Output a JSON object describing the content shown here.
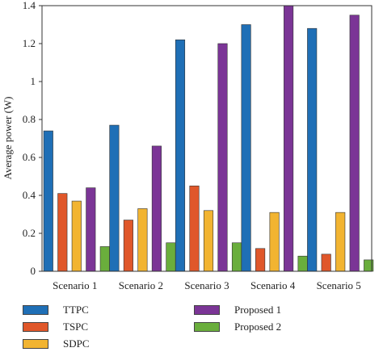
{
  "chart_data": {
    "type": "bar",
    "title": "",
    "xlabel": "",
    "ylabel": "Average power (W)",
    "ylim": [
      0,
      1.4
    ],
    "yticks": [
      0,
      0.2,
      0.4,
      0.6,
      0.8,
      1,
      1.2,
      1.4
    ],
    "ytick_labels": [
      "0",
      "0.2",
      "0.4",
      "0.6",
      "0.8",
      "1",
      "1.2",
      "1.4"
    ],
    "categories": [
      "Scenario 1",
      "Scenario 2",
      "Scenario 3",
      "Scenario 4",
      "Scenario 5"
    ],
    "series": [
      {
        "name": "TTPC",
        "color": "#1f6fb6",
        "values": [
          0.74,
          0.77,
          1.22,
          1.3,
          1.28
        ]
      },
      {
        "name": "TSPC",
        "color": "#e0572a",
        "values": [
          0.41,
          0.27,
          0.45,
          0.12,
          0.09
        ]
      },
      {
        "name": "SDPC",
        "color": "#f2b431",
        "values": [
          0.37,
          0.33,
          0.32,
          0.31,
          0.31
        ]
      },
      {
        "name": "Proposed 1",
        "color": "#7b3596",
        "values": [
          0.44,
          0.66,
          1.2,
          1.4,
          1.35
        ]
      },
      {
        "name": "Proposed 2",
        "color": "#6aae3c",
        "values": [
          0.13,
          0.15,
          0.15,
          0.08,
          0.06
        ]
      }
    ],
    "grid": false,
    "legend_position": "bottom"
  }
}
